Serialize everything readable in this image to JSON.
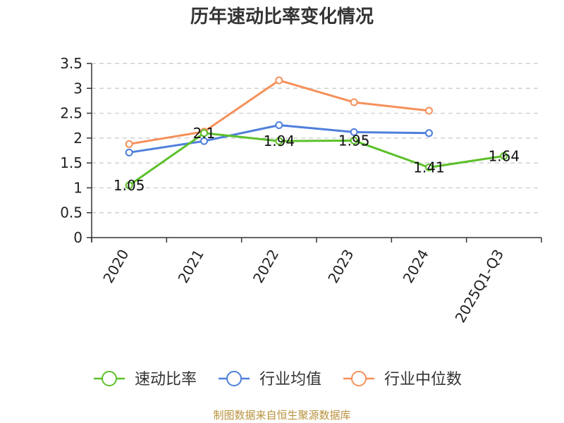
{
  "chart_data": {
    "type": "line",
    "title": "历年速动比率变化情况",
    "categories": [
      "2020",
      "2021",
      "2022",
      "2023",
      "2024",
      "2025Q1-Q3"
    ],
    "ylim": [
      0,
      3.5
    ],
    "yticks": [
      "0",
      "0.5",
      "1",
      "1.5",
      "2",
      "2.5",
      "3",
      "3.5"
    ],
    "grid": true,
    "legend_position": "bottom",
    "series": [
      {
        "name": "速动比率",
        "color": "#5cc02a",
        "values": [
          1.05,
          2.1,
          1.94,
          1.95,
          1.41,
          1.64
        ],
        "labels": [
          "1.05",
          "2.1",
          "1.94",
          "1.95",
          "1.41",
          "1.64"
        ]
      },
      {
        "name": "行业均值",
        "color": "#4f7fdb",
        "values": [
          1.71,
          1.94,
          2.26,
          2.12,
          2.1,
          null
        ]
      },
      {
        "name": "行业中位数",
        "color": "#f5905a",
        "values": [
          1.88,
          2.13,
          3.16,
          2.72,
          2.55,
          null
        ]
      }
    ],
    "source": "制图数据来自恒生聚源数据库"
  }
}
